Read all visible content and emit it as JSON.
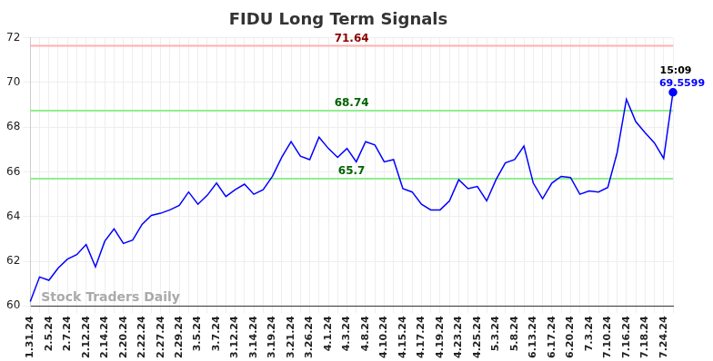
{
  "chart_data": {
    "type": "line",
    "title": "FIDU Long Term Signals",
    "watermark": "Stock Traders Daily",
    "categories": [
      "1.31.24",
      null,
      "2.5.24",
      null,
      "2.7.24",
      null,
      "2.12.24",
      null,
      "2.14.24",
      null,
      "2.20.24",
      null,
      "2.22.24",
      null,
      "2.27.24",
      null,
      "2.29.24",
      null,
      "3.5.24",
      null,
      "3.7.24",
      null,
      "3.12.24",
      null,
      "3.14.24",
      null,
      "3.19.24",
      null,
      "3.21.24",
      null,
      "3.26.24",
      null,
      "4.1.24",
      null,
      "4.3.24",
      null,
      "4.8.24",
      null,
      "4.10.24",
      null,
      "4.15.24",
      null,
      "4.17.24",
      null,
      "4.19.24",
      null,
      "4.23.24",
      null,
      "4.25.24",
      null,
      "5.3.24",
      null,
      "5.8.24",
      null,
      "6.13.24",
      null,
      "6.17.24",
      null,
      "6.20.24",
      null,
      "7.3.24",
      null,
      "7.10.24",
      null,
      "7.16.24",
      null,
      "7.18.24",
      null,
      "7.24.24",
      null
    ],
    "values": [
      60.2,
      61.3,
      61.15,
      61.7,
      62.1,
      62.3,
      62.75,
      61.75,
      62.9,
      63.45,
      62.8,
      62.95,
      63.65,
      64.05,
      64.15,
      64.3,
      64.5,
      65.1,
      64.55,
      64.95,
      65.5,
      64.9,
      65.2,
      65.45,
      65.0,
      65.2,
      65.8,
      66.65,
      67.35,
      66.7,
      66.55,
      67.55,
      67.05,
      66.65,
      67.05,
      66.45,
      67.35,
      67.2,
      66.45,
      66.55,
      65.25,
      65.1,
      64.55,
      64.3,
      64.3,
      64.7,
      65.65,
      65.25,
      65.35,
      64.7,
      65.65,
      66.4,
      66.55,
      67.15,
      65.5,
      64.8,
      65.5,
      65.8,
      65.75,
      65.0,
      65.15,
      65.1,
      65.3,
      66.85,
      69.25,
      68.25,
      67.75,
      67.3,
      66.6,
      69.5599
    ],
    "color": "#0000ff",
    "ylim": [
      60,
      72
    ],
    "yticks": [
      60,
      62,
      64,
      66,
      68,
      70,
      72
    ],
    "grid": true,
    "levels": [
      {
        "value": 71.64,
        "color": "#ffb0b0",
        "text_color": "#8b0000"
      },
      {
        "value": 68.74,
        "color": "#90ee90",
        "text_color": "#006400"
      },
      {
        "value": 65.7,
        "color": "#90ee90",
        "text_color": "#006400"
      }
    ],
    "last_point": {
      "time": "15:09"
    }
  }
}
